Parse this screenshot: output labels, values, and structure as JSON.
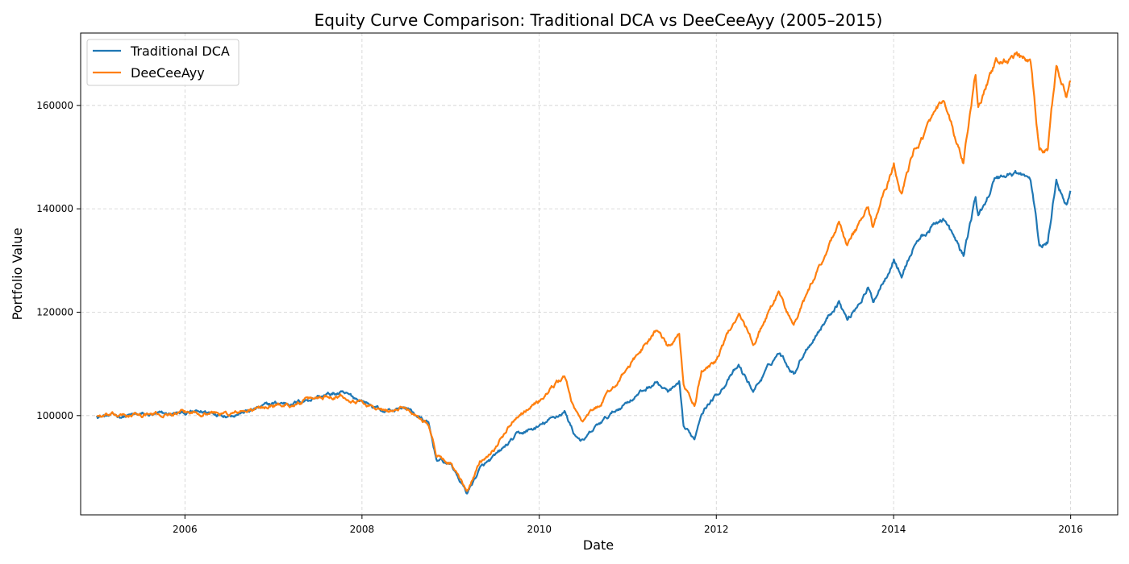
{
  "chart_data": {
    "type": "line",
    "title": "Equity Curve Comparison: Traditional DCA vs DeeCeeAyy (2005–2015)",
    "xlabel": "Date",
    "ylabel": "Portfolio Value",
    "xlim": [
      "2004-10-28",
      "2016-07-13"
    ],
    "ylim": [
      80800,
      174000
    ],
    "x_ticks": [
      {
        "value": "2006-01-01",
        "label": "2006"
      },
      {
        "value": "2008-01-01",
        "label": "2008"
      },
      {
        "value": "2010-01-01",
        "label": "2010"
      },
      {
        "value": "2012-01-01",
        "label": "2012"
      },
      {
        "value": "2014-01-01",
        "label": "2014"
      },
      {
        "value": "2016-01-01",
        "label": "2016"
      }
    ],
    "y_ticks": [
      100000,
      120000,
      140000,
      160000
    ],
    "grid": true,
    "legend_position": "top-left",
    "series": [
      {
        "name": "Traditional DCA",
        "color": "#1f77b4",
        "points": [
          [
            "2005-01-03",
            100000
          ],
          [
            "2005-04-01",
            99900
          ],
          [
            "2005-07-01",
            100100
          ],
          [
            "2005-10-03",
            100150
          ],
          [
            "2006-01-03",
            100500
          ],
          [
            "2006-04-03",
            100650
          ],
          [
            "2006-07-03",
            100300
          ],
          [
            "2006-10-02",
            101000
          ],
          [
            "2007-01-02",
            102300
          ],
          [
            "2007-04-02",
            102500
          ],
          [
            "2007-07-02",
            103700
          ],
          [
            "2007-10-01",
            104300
          ],
          [
            "2008-01-02",
            102900
          ],
          [
            "2008-04-01",
            100800
          ],
          [
            "2008-07-01",
            101600
          ],
          [
            "2008-10-01",
            98300
          ],
          [
            "2008-11-03",
            91600
          ],
          [
            "2009-01-02",
            90500
          ],
          [
            "2009-03-09",
            85000
          ],
          [
            "2009-05-01",
            89700
          ],
          [
            "2009-07-01",
            91900
          ],
          [
            "2009-10-01",
            96200
          ],
          [
            "2010-01-04",
            97900
          ],
          [
            "2010-04-15",
            100800
          ],
          [
            "2010-05-25",
            96500
          ],
          [
            "2010-07-02",
            95000
          ],
          [
            "2010-09-01",
            98200
          ],
          [
            "2010-12-31",
            102800
          ],
          [
            "2011-04-29",
            106500
          ],
          [
            "2011-06-15",
            104500
          ],
          [
            "2011-08-01",
            105800
          ],
          [
            "2011-08-19",
            97500
          ],
          [
            "2011-10-03",
            95500
          ],
          [
            "2011-11-01",
            101000
          ],
          [
            "2012-01-03",
            104100
          ],
          [
            "2012-04-02",
            109500
          ],
          [
            "2012-06-01",
            104800
          ],
          [
            "2012-09-14",
            112300
          ],
          [
            "2012-11-15",
            108300
          ],
          [
            "2013-01-02",
            112700
          ],
          [
            "2013-05-21",
            122300
          ],
          [
            "2013-06-24",
            118500
          ],
          [
            "2013-09-18",
            124600
          ],
          [
            "2013-10-08",
            122000
          ],
          [
            "2014-01-02",
            130500
          ],
          [
            "2014-02-03",
            127000
          ],
          [
            "2014-04-01",
            133500
          ],
          [
            "2014-07-24",
            138300
          ],
          [
            "2014-10-16",
            130800
          ],
          [
            "2014-12-05",
            142300
          ],
          [
            "2014-12-16",
            138300
          ],
          [
            "2015-02-27",
            146100
          ],
          [
            "2015-05-21",
            147000
          ],
          [
            "2015-07-20",
            145600
          ],
          [
            "2015-08-25",
            132800
          ],
          [
            "2015-09-29",
            133500
          ],
          [
            "2015-11-03",
            146000
          ],
          [
            "2015-12-15",
            141000
          ],
          [
            "2015-12-31",
            143500
          ]
        ]
      },
      {
        "name": "DeeCeeAyy",
        "color": "#ff7f0e",
        "points": [
          [
            "2005-01-03",
            100000
          ],
          [
            "2005-04-01",
            99900
          ],
          [
            "2005-07-01",
            100100
          ],
          [
            "2005-10-03",
            100150
          ],
          [
            "2006-01-03",
            100500
          ],
          [
            "2006-04-03",
            100650
          ],
          [
            "2006-07-03",
            100300
          ],
          [
            "2006-10-02",
            101000
          ],
          [
            "2007-01-02",
            102000
          ],
          [
            "2007-04-02",
            102200
          ],
          [
            "2007-07-02",
            103500
          ],
          [
            "2007-10-01",
            104100
          ],
          [
            "2008-01-02",
            102700
          ],
          [
            "2008-04-01",
            100700
          ],
          [
            "2008-07-01",
            101500
          ],
          [
            "2008-10-01",
            98500
          ],
          [
            "2008-11-03",
            92300
          ],
          [
            "2009-01-02",
            90800
          ],
          [
            "2009-03-09",
            85000
          ],
          [
            "2009-05-01",
            91000
          ],
          [
            "2009-07-01",
            93800
          ],
          [
            "2009-10-01",
            100200
          ],
          [
            "2010-01-04",
            103000
          ],
          [
            "2010-04-15",
            107700
          ],
          [
            "2010-05-25",
            101000
          ],
          [
            "2010-07-02",
            99200
          ],
          [
            "2010-09-01",
            101700
          ],
          [
            "2010-12-31",
            109000
          ],
          [
            "2011-04-29",
            116800
          ],
          [
            "2011-06-15",
            113000
          ],
          [
            "2011-08-01",
            115300
          ],
          [
            "2011-08-19",
            106000
          ],
          [
            "2011-10-03",
            101800
          ],
          [
            "2011-11-01",
            108500
          ],
          [
            "2012-01-03",
            111000
          ],
          [
            "2012-04-02",
            120200
          ],
          [
            "2012-06-01",
            114000
          ],
          [
            "2012-09-14",
            123800
          ],
          [
            "2012-11-15",
            117400
          ],
          [
            "2013-01-02",
            122500
          ],
          [
            "2013-05-21",
            137500
          ],
          [
            "2013-06-24",
            132500
          ],
          [
            "2013-09-18",
            140200
          ],
          [
            "2013-10-08",
            136500
          ],
          [
            "2014-01-02",
            148700
          ],
          [
            "2014-02-03",
            143000
          ],
          [
            "2014-04-01",
            151800
          ],
          [
            "2014-07-24",
            160700
          ],
          [
            "2014-10-16",
            148500
          ],
          [
            "2014-12-05",
            165800
          ],
          [
            "2014-12-16",
            160000
          ],
          [
            "2015-02-27",
            168300
          ],
          [
            "2015-05-21",
            169500
          ],
          [
            "2015-07-20",
            167800
          ],
          [
            "2015-08-25",
            150800
          ],
          [
            "2015-09-29",
            151500
          ],
          [
            "2015-11-03",
            168000
          ],
          [
            "2015-12-15",
            161500
          ],
          [
            "2015-12-31",
            164800
          ]
        ]
      }
    ]
  }
}
